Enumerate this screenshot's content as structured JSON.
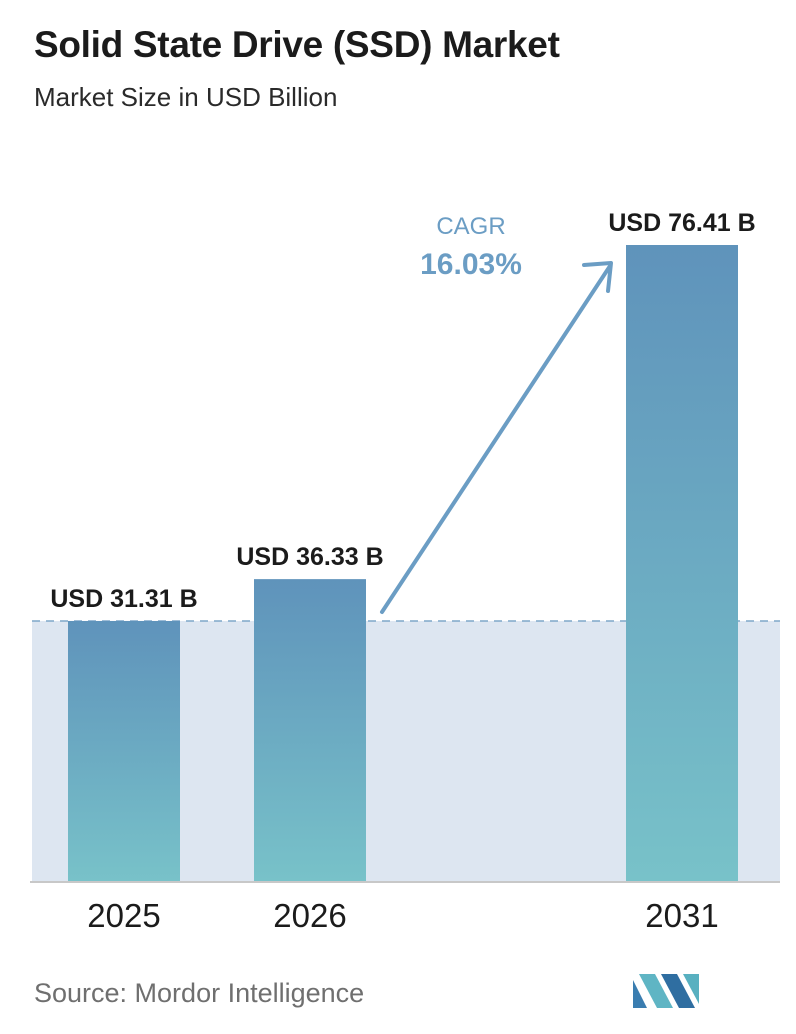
{
  "header": {
    "title": "Solid State Drive (SSD) Market",
    "subtitle": "Market Size in USD Billion"
  },
  "chart_data": {
    "type": "bar",
    "categories": [
      "2025",
      "2026",
      "2031"
    ],
    "values": [
      31.31,
      36.33,
      76.41
    ],
    "data_labels": [
      "USD 31.31 B",
      "USD 36.33 B",
      "USD 76.41 B"
    ],
    "annotation": {
      "label": "CAGR",
      "value": "16.03%"
    },
    "title": "Solid State Drive (SSD) Market",
    "ylabel": "",
    "xlabel": "",
    "ylim": [
      0,
      76.41
    ],
    "grid": false,
    "reference_line_value": 31.31,
    "colors": {
      "bar_top": "#5f93bb",
      "bar_bottom": "#78c2c9",
      "band": "#dde6f1",
      "arrow": "#6b9dc4",
      "axis": "#c8c8c8"
    }
  },
  "footer": {
    "source": "Source:  Mordor Intelligence",
    "logo_icon": "mordor-intelligence-logo-icon"
  }
}
